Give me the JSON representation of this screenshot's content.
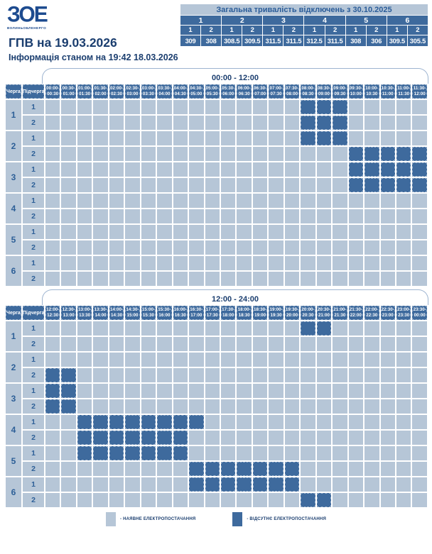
{
  "brand": {
    "logo_text": "ЗОЕ",
    "logo_subtext": "ВОЛИНЬОБЛЕНЕРГО"
  },
  "page": {
    "title": "ГПВ на 19.03.2026",
    "subtitle": "Інформація станом на 19:42 18.03.2026"
  },
  "summary": {
    "title": "Загальна тривалість відключень з 30.10.2025",
    "queues": [
      "1",
      "2",
      "3",
      "4",
      "5",
      "6"
    ],
    "subqueues": [
      "1",
      "2",
      "1",
      "2",
      "1",
      "2",
      "1",
      "2",
      "1",
      "2",
      "1",
      "2"
    ],
    "values": [
      "309",
      "308",
      "308.5",
      "309.5",
      "311.5",
      "311.5",
      "312.5",
      "311.5",
      "308",
      "306",
      "309.5",
      "305.5"
    ]
  },
  "grid_labels": {
    "queue": "Черга",
    "subqueue": "Підчерга"
  },
  "chart_data": {
    "type": "heatmap",
    "title": "ГПВ на 19.03.2026",
    "tables": [
      {
        "time_range": "00:00 - 12:00",
        "slots": [
          "00:00-00:30",
          "00:30-01:00",
          "01:00-01:30",
          "01:30-02:00",
          "02:00-02:30",
          "02:30-03:00",
          "03:00-03:30",
          "03:30-04:00",
          "04:00-04:30",
          "04:30-05:00",
          "05:00-05:30",
          "05:30-06:00",
          "06:00-06:30",
          "06:30-07:00",
          "07:00-07:30",
          "07:30-08:00",
          "08:00-08:30",
          "08:30-09:00",
          "09:00-09:30",
          "09:30-10:00",
          "10:00-10:30",
          "10:30-11:00",
          "11:00-11:30",
          "11:30-12:00"
        ],
        "rows": [
          {
            "queue": "1",
            "subqueue": "1",
            "outage_cols": [
              16,
              17,
              18
            ]
          },
          {
            "queue": "1",
            "subqueue": "2",
            "outage_cols": [
              16,
              17,
              18
            ]
          },
          {
            "queue": "2",
            "subqueue": "1",
            "outage_cols": [
              16,
              17,
              18
            ]
          },
          {
            "queue": "2",
            "subqueue": "2",
            "outage_cols": [
              19,
              20,
              21,
              22,
              23
            ]
          },
          {
            "queue": "3",
            "subqueue": "1",
            "outage_cols": [
              19,
              20,
              21,
              22,
              23
            ]
          },
          {
            "queue": "3",
            "subqueue": "2",
            "outage_cols": [
              19,
              20,
              21,
              22,
              23
            ]
          },
          {
            "queue": "4",
            "subqueue": "1",
            "outage_cols": []
          },
          {
            "queue": "4",
            "subqueue": "2",
            "outage_cols": []
          },
          {
            "queue": "5",
            "subqueue": "1",
            "outage_cols": []
          },
          {
            "queue": "5",
            "subqueue": "2",
            "outage_cols": []
          },
          {
            "queue": "6",
            "subqueue": "1",
            "outage_cols": []
          },
          {
            "queue": "6",
            "subqueue": "2",
            "outage_cols": []
          }
        ]
      },
      {
        "time_range": "12:00 - 24:00",
        "slots": [
          "12:00-12:30",
          "12:30-13:00",
          "13:00-13:30",
          "13:30-14:00",
          "14:00-14:30",
          "14:30-15:00",
          "15:00-15:30",
          "15:30-16:00",
          "16:00-16:30",
          "16:30-17:00",
          "17:00-17:30",
          "17:30-18:00",
          "18:00-18:30",
          "18:30-19:00",
          "19:00-19:30",
          "19:30-20:00",
          "20:00-20:30",
          "20:30-21:00",
          "21:00-21:30",
          "21:30-22:00",
          "22:00-22:30",
          "22:30-23:00",
          "23:00-23:30",
          "23:30-00:00"
        ],
        "rows": [
          {
            "queue": "1",
            "subqueue": "1",
            "outage_cols": [
              16,
              17
            ]
          },
          {
            "queue": "1",
            "subqueue": "2",
            "outage_cols": []
          },
          {
            "queue": "2",
            "subqueue": "1",
            "outage_cols": []
          },
          {
            "queue": "2",
            "subqueue": "2",
            "outage_cols": [
              0,
              1
            ]
          },
          {
            "queue": "3",
            "subqueue": "1",
            "outage_cols": [
              0,
              1
            ]
          },
          {
            "queue": "3",
            "subqueue": "2",
            "outage_cols": [
              0,
              1
            ]
          },
          {
            "queue": "4",
            "subqueue": "1",
            "outage_cols": [
              2,
              3,
              4,
              5,
              6,
              7,
              8,
              9
            ]
          },
          {
            "queue": "4",
            "subqueue": "2",
            "outage_cols": [
              2,
              3,
              4,
              5,
              6,
              7,
              8
            ]
          },
          {
            "queue": "5",
            "subqueue": "1",
            "outage_cols": [
              2,
              3,
              4,
              5,
              6,
              7,
              8
            ]
          },
          {
            "queue": "5",
            "subqueue": "2",
            "outage_cols": [
              9,
              10,
              11,
              12,
              13,
              14,
              15
            ]
          },
          {
            "queue": "6",
            "subqueue": "1",
            "outage_cols": [
              9,
              10,
              11,
              12,
              13,
              14,
              15
            ]
          },
          {
            "queue": "6",
            "subqueue": "2",
            "outage_cols": [
              16,
              17
            ]
          }
        ]
      }
    ]
  },
  "legend": {
    "available_label": "- НАЯВНЕ ЕЛЕКТРОПОСТАЧАННЯ",
    "absent_label": "- ВІДСУТНЄ ЕЛЕКТРОПОСТАЧАННЯ"
  },
  "colors": {
    "available": "#b6c6d7",
    "absent": "#3e6a9d",
    "navy_text": "#1b3e6f",
    "number_text": "#2d5f97",
    "summary_title_text": "#2a5c99",
    "logo": "#1d4b8f"
  }
}
